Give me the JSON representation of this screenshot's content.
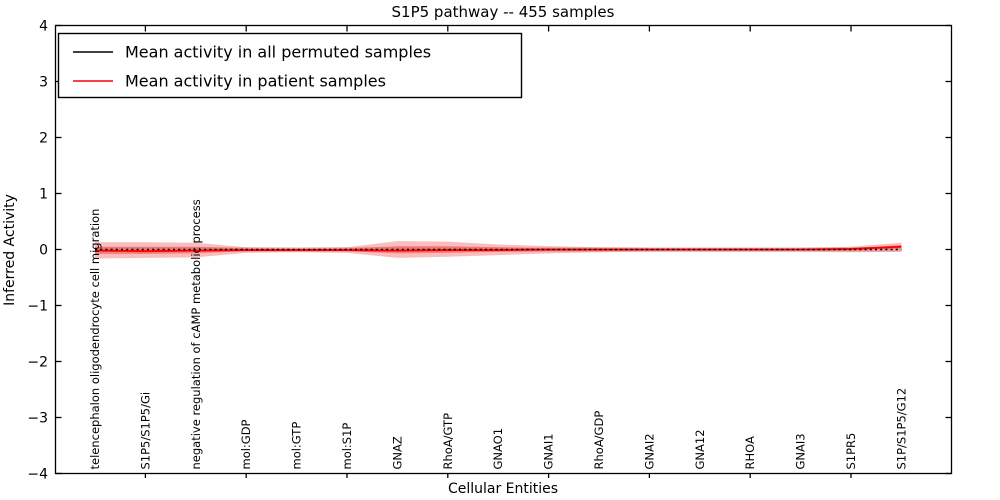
{
  "figure": {
    "background": "#ffffff",
    "frame_color": "#000000"
  },
  "chart_data": {
    "type": "line",
    "title": "S1P5 pathway -- 455 samples",
    "xlabel": "Cellular Entities",
    "ylabel": "Inferred Activity",
    "ylim": [
      -4,
      4
    ],
    "yticks": [
      -4,
      -3,
      -2,
      -1,
      0,
      1,
      2,
      3,
      4
    ],
    "grid": false,
    "categories": [
      "telencephalon oligodendrocyte cell migration",
      "S1P5/S1P5/Gi",
      "negative regulation of cAMP metabolic process",
      "mol:GDP",
      "mol:GTP",
      "mol:S1P",
      "GNAZ",
      "RhoA/GTP",
      "GNAO1",
      "GNAI1",
      "RhoA/GDP",
      "GNAI2",
      "GNA12",
      "RHOA",
      "GNAI3",
      "S1PR5",
      "S1P/S1P5/G12"
    ],
    "x_tick_mark_indices": [
      1,
      3,
      5,
      7,
      9,
      11,
      13,
      15
    ],
    "series": [
      {
        "name": "Mean activity in all permuted samples",
        "color": "#000000",
        "line_style": "dotted",
        "values": [
          0,
          0,
          0,
          0,
          0,
          0,
          0,
          0,
          0,
          0,
          0,
          0,
          0,
          0,
          0,
          0,
          0
        ]
      },
      {
        "name": "Mean activity in patient samples",
        "color": "#ff0000",
        "line_style": "solid",
        "values": [
          -0.02,
          -0.03,
          -0.02,
          -0.01,
          -0.01,
          -0.01,
          -0.02,
          -0.01,
          -0.01,
          0,
          0,
          0,
          0,
          0,
          0,
          0.01,
          0.05
        ]
      }
    ],
    "bands": [
      {
        "name": "permuted-samples-std-band",
        "color": "rgba(130,130,130,0.28)",
        "upper": [
          0.04,
          0.04,
          0.04,
          0.04,
          0.04,
          0.04,
          0.04,
          0.04,
          0.04,
          0.04,
          0.04,
          0.04,
          0.04,
          0.04,
          0.04,
          0.04,
          0.04
        ],
        "lower": [
          -0.04,
          -0.04,
          -0.04,
          -0.04,
          -0.04,
          -0.04,
          -0.04,
          -0.04,
          -0.04,
          -0.04,
          -0.04,
          -0.04,
          -0.04,
          -0.04,
          -0.04,
          -0.04,
          -0.04
        ]
      },
      {
        "name": "patient-samples-std-band-outer",
        "color": "rgba(240,55,55,0.33)",
        "upper": [
          0.13,
          0.13,
          0.12,
          0.04,
          0.03,
          0.04,
          0.15,
          0.14,
          0.09,
          0.06,
          0.04,
          0.03,
          0.03,
          0.03,
          0.03,
          0.05,
          0.12
        ],
        "lower": [
          -0.16,
          -0.15,
          -0.14,
          -0.06,
          -0.05,
          -0.06,
          -0.15,
          -0.13,
          -0.1,
          -0.07,
          -0.05,
          -0.04,
          -0.04,
          -0.04,
          -0.04,
          -0.05,
          -0.04
        ]
      },
      {
        "name": "patient-samples-std-band-inner",
        "color": "rgba(235,45,45,0.40)",
        "upper": [
          0.05,
          0.05,
          0.05,
          0.02,
          0.01,
          0.02,
          0.06,
          0.06,
          0.04,
          0.02,
          0.02,
          0.01,
          0.01,
          0.01,
          0.01,
          0.02,
          0.08
        ],
        "lower": [
          -0.08,
          -0.08,
          -0.07,
          -0.03,
          -0.03,
          -0.03,
          -0.07,
          -0.06,
          -0.04,
          -0.03,
          -0.03,
          -0.02,
          -0.02,
          -0.02,
          -0.02,
          -0.02,
          0.02
        ]
      }
    ],
    "legend": {
      "position": "upper left",
      "entries": [
        "Mean activity in all permuted samples",
        "Mean activity in patient samples"
      ]
    }
  }
}
